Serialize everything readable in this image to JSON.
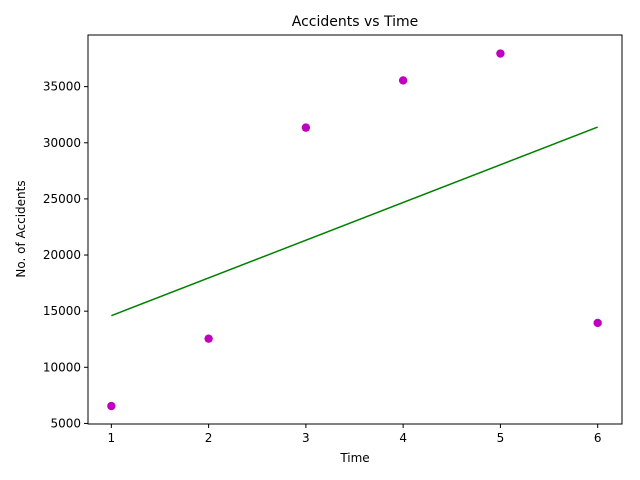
{
  "chart_data": {
    "type": "scatter",
    "title": "Accidents vs Time",
    "xlabel": "Time",
    "ylabel": "No. of Accidents",
    "xlim": [
      0.76,
      6.25
    ],
    "ylim": [
      4950,
      39600
    ],
    "xticks": [
      1,
      2,
      3,
      4,
      5,
      6
    ],
    "yticks": [
      5000,
      10000,
      15000,
      20000,
      25000,
      30000,
      35000
    ],
    "grid": false,
    "legend": "none",
    "series": [
      {
        "kind": "points",
        "color": "#bf00bf",
        "x": [
          1,
          2,
          3,
          4,
          5,
          6
        ],
        "y": [
          6550,
          12550,
          31350,
          35550,
          37950,
          13950
        ]
      },
      {
        "kind": "line",
        "color": "#008000",
        "x": [
          1,
          6
        ],
        "y": [
          14600,
          31400
        ]
      }
    ]
  }
}
